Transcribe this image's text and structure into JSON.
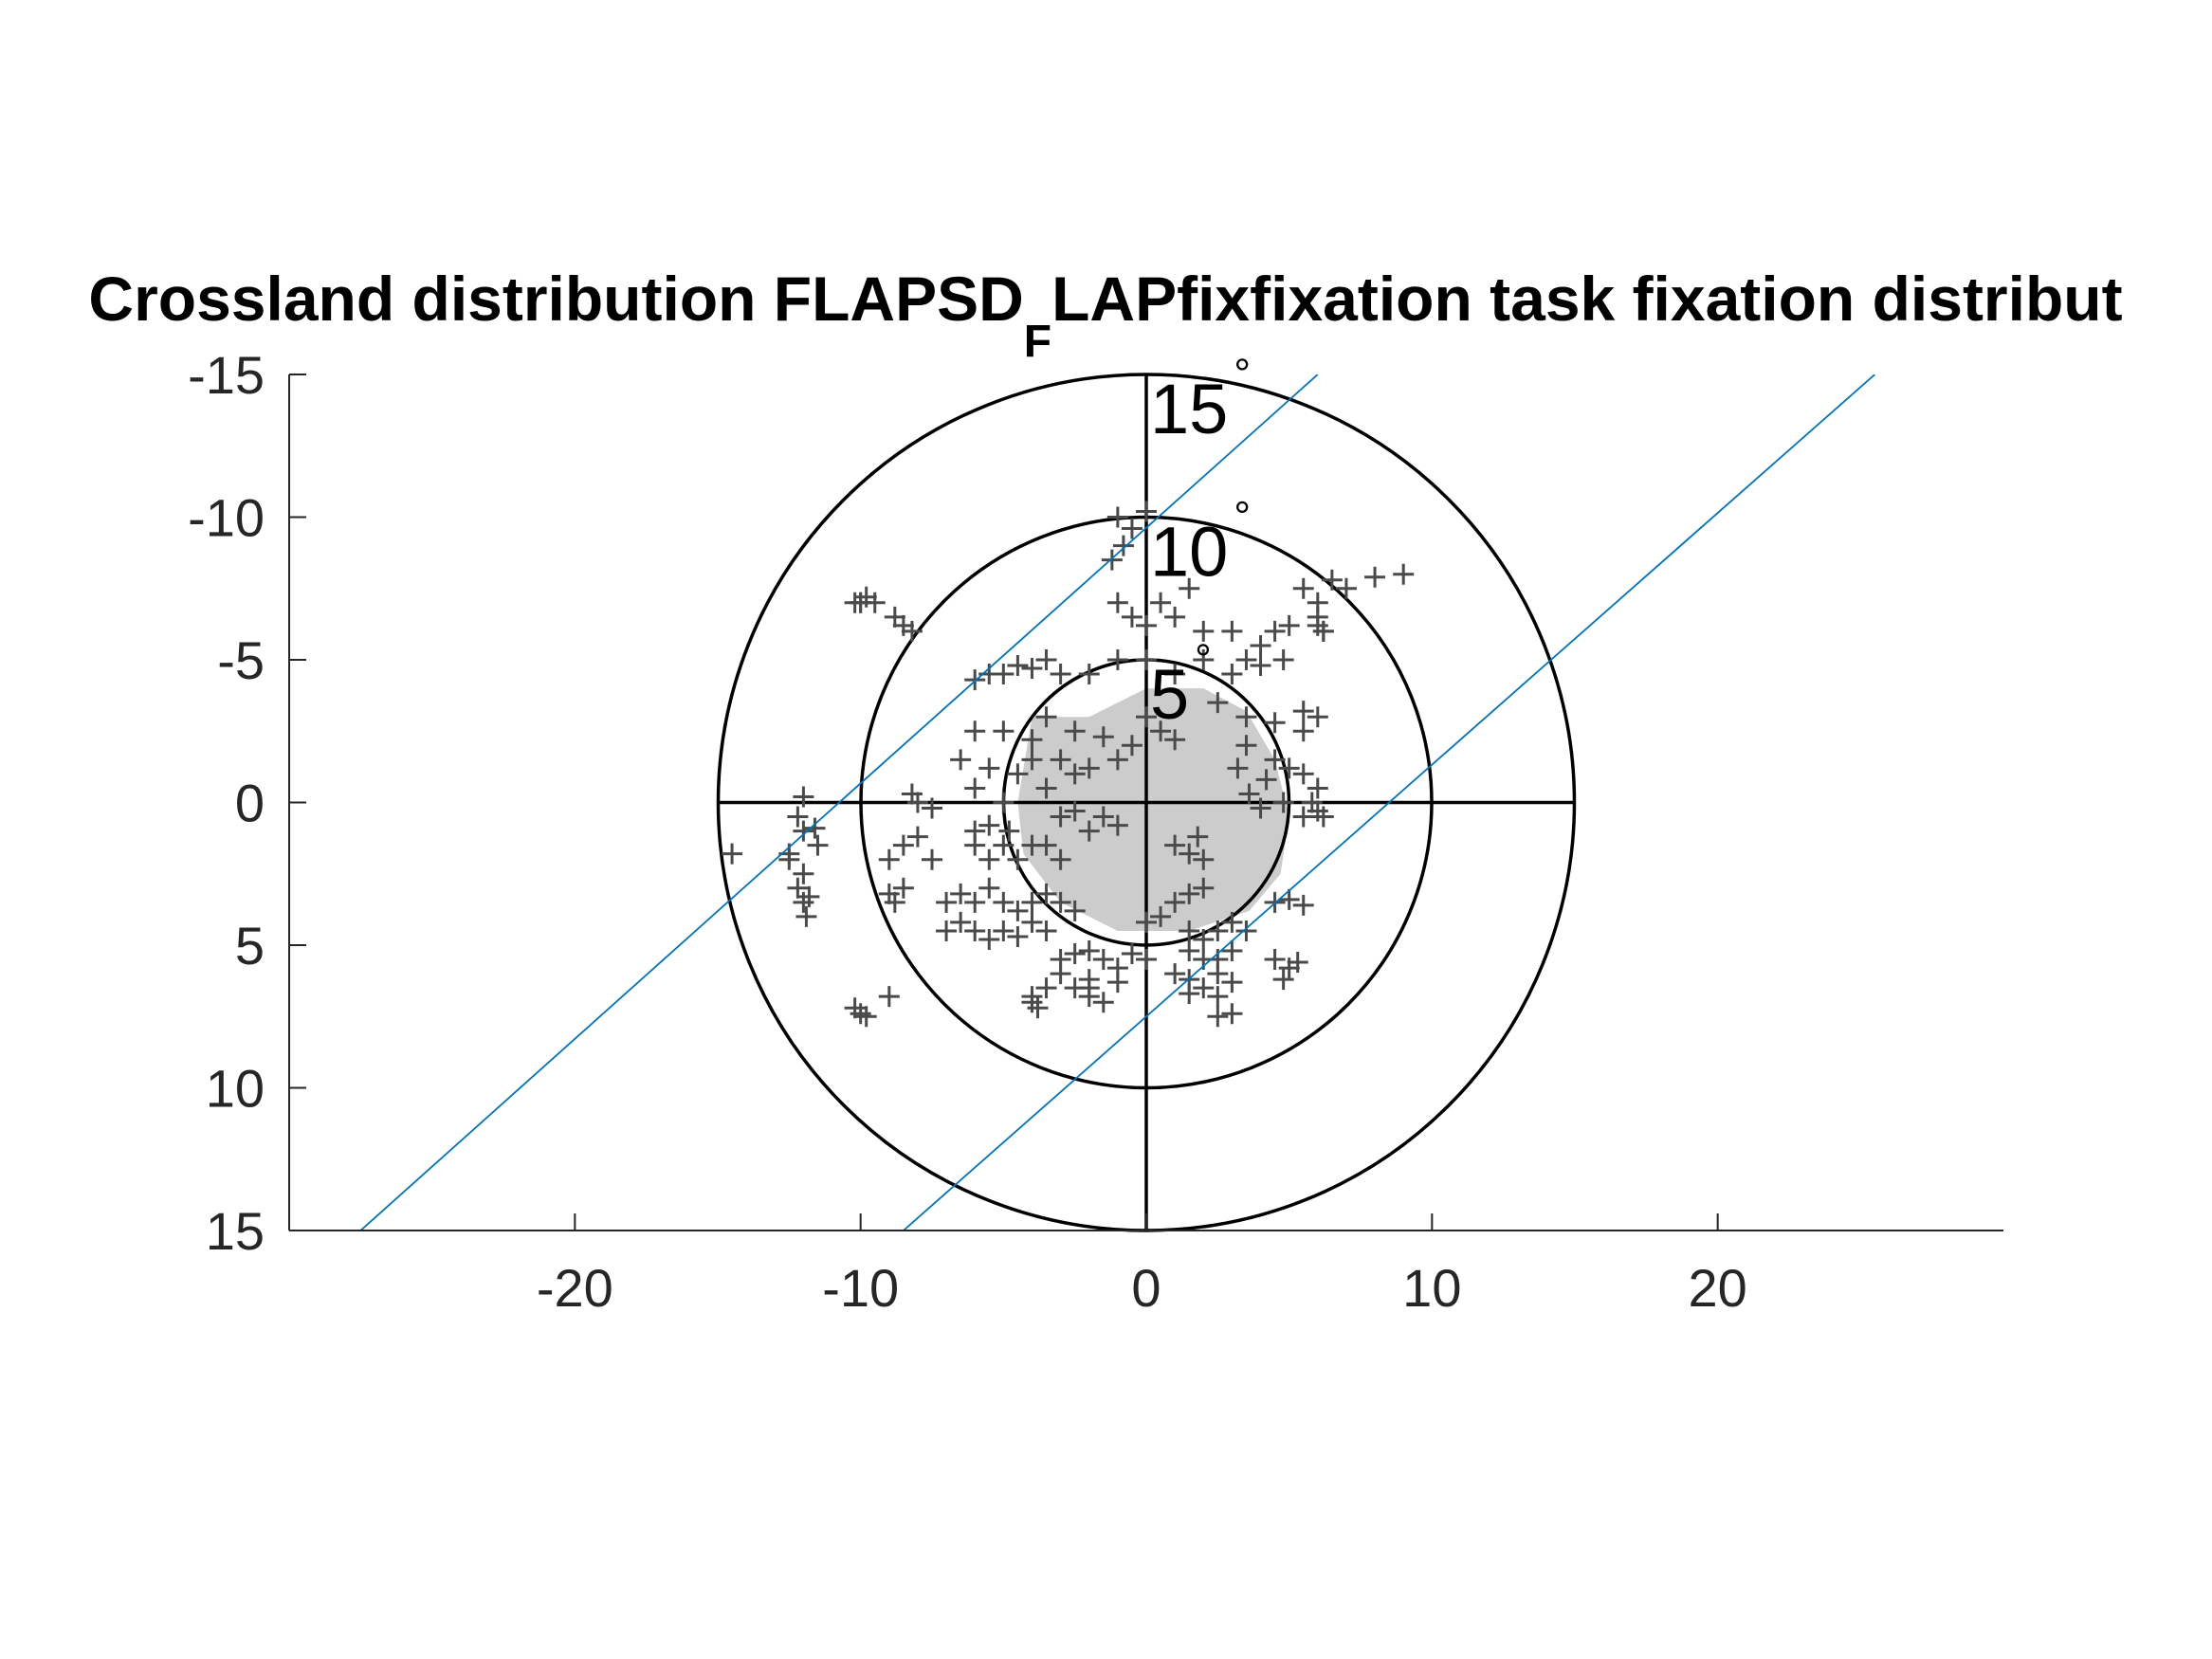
{
  "chart_data": {
    "type": "scatter",
    "title_main": "Crossland distribution FLAPSD",
    "title_sub": "F",
    "title_rest": "LAPfixfixation task fixation distribut",
    "xlabel": "",
    "ylabel": "",
    "xlim": [
      -30,
      30
    ],
    "ylim": [
      -15,
      15
    ],
    "y_reversed": true,
    "x_ticks": [
      -20,
      -10,
      0,
      10,
      20
    ],
    "x_tick_labels": [
      "-20",
      "-10",
      "0",
      "10",
      "20"
    ],
    "y_ticks": [
      -15,
      -10,
      -5,
      0,
      5,
      10,
      15
    ],
    "y_tick_labels": [
      "-15",
      "-10",
      "-5",
      "0",
      "5",
      "10",
      "15"
    ],
    "rings": [
      {
        "radius": 5,
        "label": "5",
        "degree": "°"
      },
      {
        "radius": 10,
        "label": "10",
        "degree": "°"
      },
      {
        "radius": 15,
        "label": "15",
        "degree": "°"
      }
    ],
    "crosshair": {
      "x": [
        -15,
        15
      ],
      "y": [
        -15,
        15
      ]
    },
    "reference_lines": [
      {
        "x1": -27.5,
        "y1": 15,
        "x2": 6,
        "y2": -15
      },
      {
        "x1": -8.5,
        "y1": 15,
        "x2": 25.5,
        "y2": -15
      }
    ],
    "fixation_region": [
      [
        -4.5,
        0
      ],
      [
        -4,
        -3
      ],
      [
        -2,
        -3
      ],
      [
        -1,
        -3.5
      ],
      [
        0,
        -4
      ],
      [
        2,
        -4
      ],
      [
        3.5,
        -3.2
      ],
      [
        4.5,
        -1.5
      ],
      [
        5,
        0.5
      ],
      [
        4.7,
        2.5
      ],
      [
        3.6,
        3.8
      ],
      [
        1.5,
        4.5
      ],
      [
        -1,
        4.5
      ],
      [
        -3,
        3.5
      ],
      [
        -4.3,
        1.8
      ]
    ],
    "point_marker": "+",
    "point_color": "#4a4a4a",
    "region_color": "#cccccc",
    "reference_line_color": "#0072bd",
    "points": [
      [
        -1,
        -10
      ],
      [
        -0.5,
        -9.6
      ],
      [
        -1.2,
        -8.5
      ],
      [
        -0.8,
        -9
      ],
      [
        0,
        -10.2
      ],
      [
        -10,
        -7
      ],
      [
        -10.2,
        -7
      ],
      [
        -9.8,
        -7.2
      ],
      [
        -8.5,
        -6.2
      ],
      [
        -8.2,
        -6
      ],
      [
        -8.8,
        -6.5
      ],
      [
        -3.5,
        -5
      ],
      [
        -4,
        -4.7
      ],
      [
        -5,
        -4.5
      ],
      [
        -6,
        -4.3
      ],
      [
        -5.5,
        -4.5
      ],
      [
        -4.5,
        -4.8
      ],
      [
        -0.5,
        -6.5
      ],
      [
        0,
        -6.2
      ],
      [
        1,
        -6.5
      ],
      [
        0.5,
        -7
      ],
      [
        -1,
        -7
      ],
      [
        1.5,
        -7.5
      ],
      [
        5.5,
        -7.5
      ],
      [
        6.5,
        -7.8
      ],
      [
        6,
        -7
      ],
      [
        7,
        -7.5
      ],
      [
        9,
        -8
      ],
      [
        8,
        -7.9
      ],
      [
        5,
        -6.2
      ],
      [
        6,
        -6.5
      ],
      [
        6.2,
        -6
      ],
      [
        6.2,
        -6
      ],
      [
        6,
        -6.2
      ],
      [
        4.5,
        -6
      ],
      [
        -3,
        -4.5
      ],
      [
        -2,
        -4.5
      ],
      [
        -1,
        -5
      ],
      [
        0,
        -5
      ],
      [
        1,
        -4.5
      ],
      [
        2,
        -5
      ],
      [
        3,
        -4.5
      ],
      [
        4,
        -4.8
      ],
      [
        4.8,
        -5
      ],
      [
        2,
        -6
      ],
      [
        3,
        -6
      ],
      [
        4,
        -5.5
      ],
      [
        3.5,
        -5
      ],
      [
        -6,
        -2.5
      ],
      [
        -5,
        -2.5
      ],
      [
        -4,
        -2.2
      ],
      [
        -3.5,
        -3
      ],
      [
        -2.5,
        -2.5
      ],
      [
        -1.5,
        -2.3
      ],
      [
        -6.5,
        -1.5
      ],
      [
        -5.5,
        -1.2
      ],
      [
        -4.5,
        -1
      ],
      [
        -6,
        -0.5
      ],
      [
        -5,
        0
      ],
      [
        -8,
        0
      ],
      [
        -7.5,
        0.2
      ],
      [
        -8.2,
        -0.3
      ],
      [
        2.5,
        -3.5
      ],
      [
        3.5,
        -3
      ],
      [
        4.5,
        -2.8
      ],
      [
        5.5,
        -2.5
      ],
      [
        6,
        -3
      ],
      [
        5.5,
        -3.2
      ],
      [
        3.5,
        -2
      ],
      [
        4.5,
        -1.5
      ],
      [
        3.2,
        -1.2
      ],
      [
        4.2,
        -0.8
      ],
      [
        5.5,
        -1
      ],
      [
        6,
        -0.5
      ],
      [
        5.8,
        0
      ],
      [
        6,
        0.3
      ],
      [
        6.2,
        0.5
      ],
      [
        5.5,
        0.5
      ],
      [
        5,
        -1.2
      ],
      [
        4.8,
        0
      ],
      [
        4,
        0.2
      ],
      [
        3.6,
        -0.3
      ],
      [
        -12,
        -0.2
      ],
      [
        -12.2,
        0.5
      ],
      [
        -12,
        1
      ],
      [
        -12.5,
        1.8
      ],
      [
        -12,
        2.5
      ],
      [
        -12.2,
        3
      ],
      [
        -12,
        3.5
      ],
      [
        -11.9,
        4
      ],
      [
        -12.5,
        2
      ],
      [
        -11.5,
        1.5
      ],
      [
        -11.6,
        0.9
      ],
      [
        -11.8,
        3.3
      ],
      [
        -14.5,
        1.8
      ],
      [
        -8.5,
        1.5
      ],
      [
        -8,
        1.2
      ],
      [
        -7.5,
        2
      ],
      [
        -9,
        2
      ],
      [
        -8.5,
        3
      ],
      [
        -9,
        3.2
      ],
      [
        -8.8,
        3.5
      ],
      [
        -6,
        1.5
      ],
      [
        -5.5,
        2
      ],
      [
        -5,
        1.5
      ],
      [
        -4.5,
        2
      ],
      [
        -4,
        1.5
      ],
      [
        -3.5,
        1.5
      ],
      [
        -3,
        2
      ],
      [
        -7,
        3.5
      ],
      [
        -6.5,
        3.2
      ],
      [
        -6,
        3.5
      ],
      [
        -5.5,
        3
      ],
      [
        -5,
        3.5
      ],
      [
        -4.5,
        3.8
      ],
      [
        -4,
        3.5
      ],
      [
        -3.5,
        3.2
      ],
      [
        -3,
        3.5
      ],
      [
        -2.5,
        3.8
      ],
      [
        -7,
        4.5
      ],
      [
        -6.5,
        4.2
      ],
      [
        -6,
        4.5
      ],
      [
        -5.5,
        4.8
      ],
      [
        -5,
        4.5
      ],
      [
        -4.5,
        4.7
      ],
      [
        -4,
        4.2
      ],
      [
        -3.5,
        4.5
      ],
      [
        -3,
        5.5
      ],
      [
        -2.5,
        5.3
      ],
      [
        -2,
        5.2
      ],
      [
        -1.5,
        5.5
      ],
      [
        -1,
        5.8
      ],
      [
        -0.5,
        5.3
      ],
      [
        0,
        5.5
      ],
      [
        -3,
        6
      ],
      [
        -2,
        6.2
      ],
      [
        -1,
        6.3
      ],
      [
        -2.5,
        6.5
      ],
      [
        -3.5,
        6.5
      ],
      [
        -2,
        6.8
      ],
      [
        -1.5,
        7
      ],
      [
        -4,
        6.8
      ],
      [
        -4,
        7
      ],
      [
        -3.8,
        7.2
      ],
      [
        -2,
        6.5
      ],
      [
        1.5,
        4.5
      ],
      [
        2,
        4.8
      ],
      [
        2.5,
        4.5
      ],
      [
        3,
        4.2
      ],
      [
        3.5,
        4.5
      ],
      [
        1.5,
        5.2
      ],
      [
        2,
        5.5
      ],
      [
        2.5,
        5.5
      ],
      [
        3,
        5.2
      ],
      [
        1,
        6
      ],
      [
        1.5,
        6.2
      ],
      [
        2,
        6.5
      ],
      [
        2.5,
        6
      ],
      [
        3,
        6.3
      ],
      [
        2.5,
        6.8
      ],
      [
        1.5,
        6.7
      ],
      [
        2.5,
        7.5
      ],
      [
        3,
        7.4
      ],
      [
        4.5,
        3.5
      ],
      [
        5,
        3.4
      ],
      [
        5.5,
        3.6
      ],
      [
        4.5,
        5.5
      ],
      [
        5,
        5.8
      ],
      [
        4.8,
        6.2
      ],
      [
        5.3,
        5.6
      ],
      [
        -10,
        7.4
      ],
      [
        -9.8,
        7.5
      ],
      [
        -10.2,
        7.2
      ],
      [
        -9,
        6.8
      ],
      [
        1,
        1.5
      ],
      [
        1.5,
        1.8
      ],
      [
        2,
        2
      ],
      [
        1.8,
        1.2
      ],
      [
        -5.5,
        0.8
      ],
      [
        -4.8,
        1
      ],
      [
        -6,
        1
      ],
      [
        -4,
        -1.5
      ],
      [
        -3,
        -1.5
      ],
      [
        -2,
        -1.2
      ],
      [
        -1,
        -1.5
      ],
      [
        -2.5,
        -1
      ],
      [
        -3.5,
        -0.5
      ],
      [
        0,
        -3
      ],
      [
        0.5,
        -2.5
      ],
      [
        1,
        -2.2
      ],
      [
        -0.5,
        -2
      ],
      [
        -1.5,
        0.5
      ],
      [
        -1,
        0.8
      ],
      [
        -2,
        1
      ],
      [
        -3,
        0.5
      ],
      [
        -2.5,
        0.3
      ],
      [
        2,
        3
      ],
      [
        1.5,
        3.2
      ],
      [
        1,
        3.5
      ],
      [
        0.5,
        4
      ],
      [
        0,
        4.2
      ],
      [
        -10,
        -7
      ],
      [
        -9.5,
        -7
      ]
    ]
  }
}
